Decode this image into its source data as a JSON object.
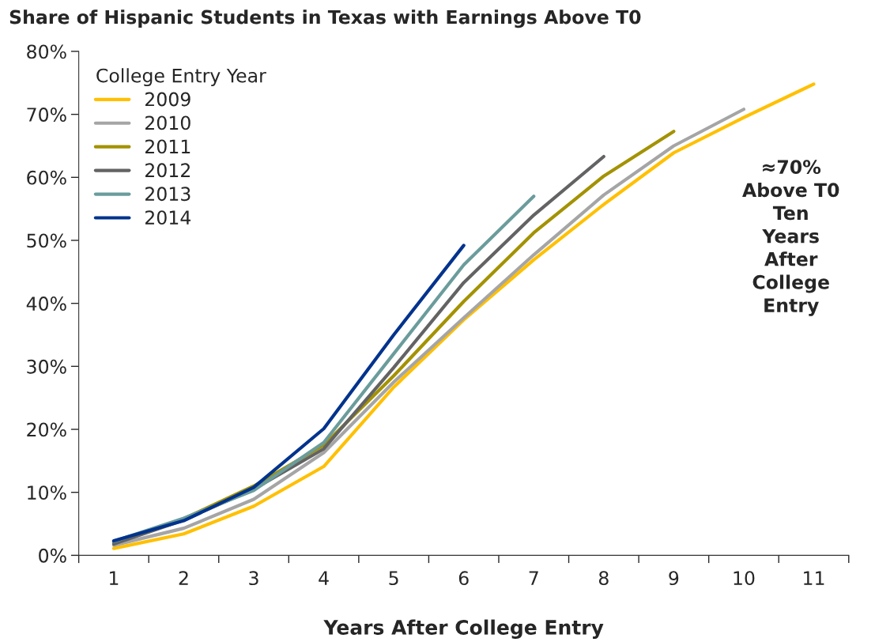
{
  "chart_data": {
    "type": "line",
    "title": "Share of Hispanic Students in Texas with Earnings Above T0",
    "xlabel": "Years After College Entry",
    "legend_title": "College Entry Year",
    "categories": [
      "1",
      "2",
      "3",
      "4",
      "5",
      "6",
      "7",
      "8",
      "9",
      "10",
      "11"
    ],
    "series": [
      {
        "name": "2009",
        "color": "#ffc000",
        "values": [
          1.1,
          3.4,
          7.8,
          14.1,
          26.7,
          37.4,
          46.9,
          55.7,
          63.9,
          69.5,
          74.8
        ]
      },
      {
        "name": "2010",
        "color": "#a5a5a5",
        "values": [
          1.6,
          4.3,
          8.9,
          16.3,
          27.5,
          37.7,
          47.7,
          57.2,
          65.0,
          70.8,
          null
        ]
      },
      {
        "name": "2011",
        "color": "#a39200",
        "values": [
          2.0,
          5.8,
          11.0,
          17.5,
          28.5,
          40.3,
          51.2,
          60.2,
          67.3,
          null,
          null
        ]
      },
      {
        "name": "2012",
        "color": "#636363",
        "values": [
          1.8,
          5.6,
          10.5,
          16.9,
          29.8,
          43.3,
          54.0,
          63.3,
          null,
          null,
          null
        ]
      },
      {
        "name": "2013",
        "color": "#6b9c9c",
        "values": [
          2.2,
          5.9,
          10.3,
          17.9,
          32.0,
          46.1,
          57.0,
          null,
          null,
          null,
          null
        ]
      },
      {
        "name": "2014",
        "color": "#00338d",
        "values": [
          2.3,
          5.5,
          10.8,
          20.1,
          35.0,
          49.2,
          null,
          null,
          null,
          null,
          null
        ]
      }
    ],
    "ylim": [
      0,
      80
    ],
    "yticks": [
      {
        "value": 0,
        "label": "0%"
      },
      {
        "value": 10,
        "label": "10%"
      },
      {
        "value": 20,
        "label": "20%"
      },
      {
        "value": 30,
        "label": "30%"
      },
      {
        "value": 40,
        "label": "40%"
      },
      {
        "value": 50,
        "label": "50%"
      },
      {
        "value": 60,
        "label": "60%"
      },
      {
        "value": 70,
        "label": "70%"
      },
      {
        "value": 80,
        "label": "80%"
      }
    ],
    "annotations": [
      "≈70%\nAbove T0\nTen\nYears\nAfter\nCollege\nEntry"
    ],
    "legend": "top left",
    "grid": false,
    "marker": "none",
    "line_style": "solid"
  }
}
